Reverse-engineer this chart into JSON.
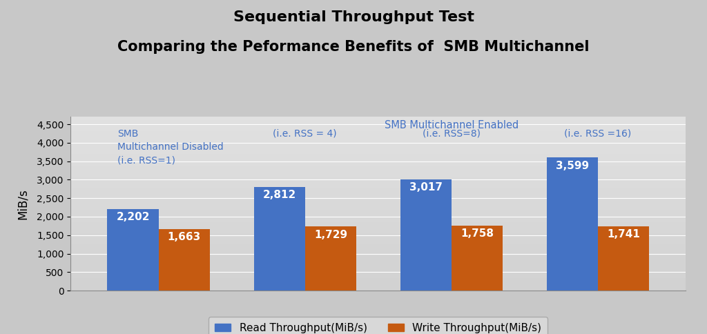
{
  "title_line1": "Sequential Throughput Test",
  "title_line2": "Comparing the Peformance Benefits of  SMB Multichannel",
  "ylabel": "MiB/s",
  "categories": [
    "RSS=1",
    "RSS=4",
    "RSS=8",
    "RSS=16"
  ],
  "read_values": [
    2202,
    2812,
    3017,
    3599
  ],
  "write_values": [
    1663,
    1729,
    1758,
    1741
  ],
  "read_color": "#4472C4",
  "write_color": "#C55A11",
  "bar_width": 0.35,
  "ylim": [
    0,
    4700
  ],
  "yticks": [
    0,
    500,
    1000,
    1500,
    2000,
    2500,
    3000,
    3500,
    4000,
    4500
  ],
  "legend_read": "Read Throughput(MiB/s)",
  "legend_write": "Write Throughput(MiB/s)",
  "group_label_color": "#4472C4",
  "title_fontsize": 16,
  "subtitle_fontsize": 15
}
